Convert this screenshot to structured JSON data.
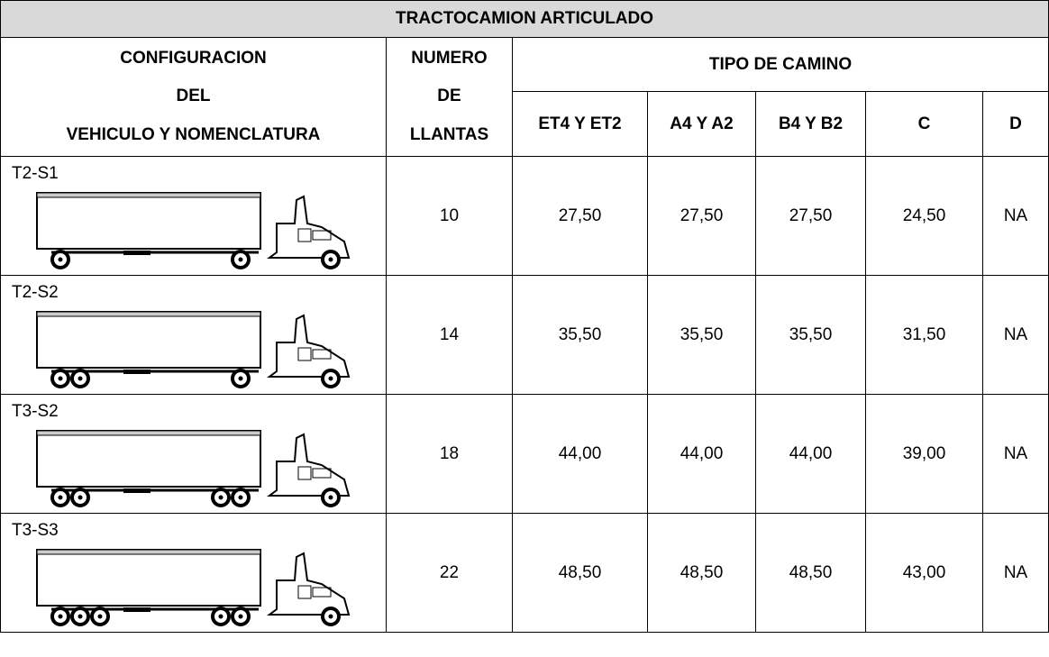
{
  "table": {
    "title": "TRACTOCAMION ARTICULADO",
    "headers": {
      "config": [
        "CONFIGURACION",
        "DEL",
        "VEHICULO Y NOMENCLATURA"
      ],
      "tires": [
        "NUMERO",
        "DE",
        "LLANTAS"
      ],
      "road_type": "TIPO DE CAMINO",
      "roads": [
        "ET4 Y ET2",
        "A4 Y A2",
        "B4 Y B2",
        "C",
        "D"
      ]
    },
    "rows": [
      {
        "name": "T2-S1",
        "tires": "10",
        "values": [
          "27,50",
          "27,50",
          "27,50",
          "24,50",
          "NA"
        ]
      },
      {
        "name": "T2-S2",
        "tires": "14",
        "values": [
          "35,50",
          "35,50",
          "35,50",
          "31,50",
          "NA"
        ]
      },
      {
        "name": "T3-S2",
        "tires": "18",
        "values": [
          "44,00",
          "44,00",
          "44,00",
          "39,00",
          "NA"
        ]
      },
      {
        "name": "T3-S3",
        "tires": "22",
        "values": [
          "48,50",
          "48,50",
          "48,50",
          "43,00",
          "NA"
        ]
      }
    ]
  }
}
